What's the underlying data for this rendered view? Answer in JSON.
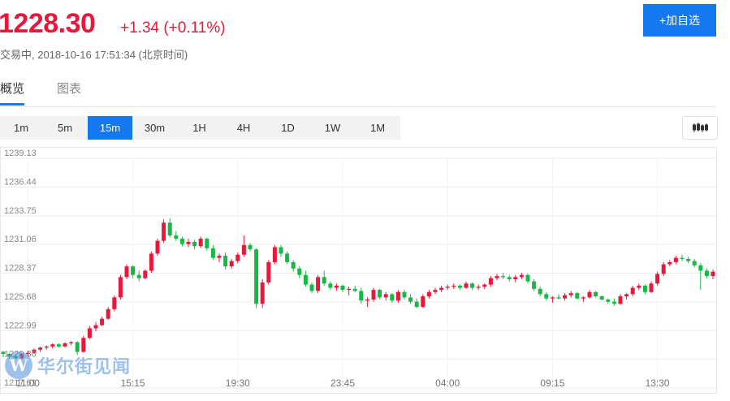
{
  "header": {
    "price": "1228.30",
    "change": "+1.34 (+0.11%)",
    "status": "交易中, 2018-10-16 17:51:34 (北京时间)",
    "add_button": "+加自选"
  },
  "tabs": [
    {
      "label": "概览",
      "active": true
    },
    {
      "label": "图表",
      "active": false
    }
  ],
  "periods": [
    {
      "label": "1m",
      "active": false
    },
    {
      "label": "5m",
      "active": false
    },
    {
      "label": "15m",
      "active": true
    },
    {
      "label": "30m",
      "active": false
    },
    {
      "label": "1H",
      "active": false
    },
    {
      "label": "4H",
      "active": false
    },
    {
      "label": "1D",
      "active": false
    },
    {
      "label": "1W",
      "active": false
    },
    {
      "label": "1M",
      "active": false
    }
  ],
  "chart_type_icon": "candlestick-icon",
  "colors": {
    "up": "#e8183b",
    "down": "#16b945",
    "accent": "#1478f0"
  },
  "watermark": {
    "text": "华尔街见闻",
    "logo_letter": "W"
  },
  "chart_data": {
    "type": "candlestick",
    "y_ticks": [
      "1239.13",
      "1236.44",
      "1233.75",
      "1231.06",
      "1228.37",
      "1225.68",
      "1222.99",
      "1220.30",
      "1217.61"
    ],
    "y_tick_values": [
      1239.13,
      1236.44,
      1233.75,
      1231.06,
      1228.37,
      1225.68,
      1222.99,
      1220.3,
      1217.61
    ],
    "ylim": [
      1217.61,
      1239.13
    ],
    "x_ticks": [
      "11:00",
      "15:15",
      "19:30",
      "23:45",
      "04:00",
      "09:15",
      "13:30"
    ],
    "x_tick_candle_index": [
      4,
      21,
      38,
      55,
      72,
      89,
      106
    ],
    "grid": true,
    "candles": [
      [
        1221.0,
        1221.1,
        1220.5,
        1220.8
      ],
      [
        1220.8,
        1220.9,
        1220.3,
        1220.6
      ],
      [
        1220.6,
        1220.8,
        1220.3,
        1220.4
      ],
      [
        1220.4,
        1220.9,
        1220.3,
        1220.8
      ],
      [
        1220.8,
        1221.1,
        1220.6,
        1220.9
      ],
      [
        1220.9,
        1221.3,
        1220.8,
        1221.2
      ],
      [
        1221.2,
        1221.5,
        1221.0,
        1221.4
      ],
      [
        1221.4,
        1221.6,
        1221.2,
        1221.5
      ],
      [
        1221.5,
        1221.8,
        1221.3,
        1221.7
      ],
      [
        1221.7,
        1221.8,
        1221.4,
        1221.5
      ],
      [
        1221.5,
        1221.9,
        1221.4,
        1221.8
      ],
      [
        1221.8,
        1222.0,
        1221.6,
        1221.9
      ],
      [
        1221.9,
        1222.0,
        1220.7,
        1221.0
      ],
      [
        1221.0,
        1222.5,
        1220.9,
        1222.3
      ],
      [
        1222.3,
        1223.4,
        1222.2,
        1223.2
      ],
      [
        1223.2,
        1223.8,
        1222.9,
        1223.5
      ],
      [
        1223.5,
        1224.3,
        1223.4,
        1224.1
      ],
      [
        1224.1,
        1225.2,
        1224.0,
        1225.0
      ],
      [
        1225.0,
        1226.3,
        1224.8,
        1226.1
      ],
      [
        1226.1,
        1228.2,
        1225.9,
        1228.0
      ],
      [
        1228.0,
        1229.2,
        1227.8,
        1229.0
      ],
      [
        1229.0,
        1229.1,
        1227.9,
        1228.2
      ],
      [
        1228.2,
        1228.6,
        1227.6,
        1227.9
      ],
      [
        1227.9,
        1228.7,
        1227.8,
        1228.6
      ],
      [
        1228.6,
        1230.4,
        1228.4,
        1230.2
      ],
      [
        1230.2,
        1231.6,
        1230.0,
        1231.4
      ],
      [
        1231.4,
        1233.4,
        1231.2,
        1233.1
      ],
      [
        1233.1,
        1233.5,
        1231.7,
        1231.9
      ],
      [
        1231.9,
        1232.3,
        1231.4,
        1231.6
      ],
      [
        1231.6,
        1231.8,
        1230.9,
        1231.1
      ],
      [
        1231.1,
        1231.6,
        1230.8,
        1231.3
      ],
      [
        1231.3,
        1231.5,
        1230.6,
        1230.9
      ],
      [
        1230.9,
        1231.8,
        1230.7,
        1231.6
      ],
      [
        1231.6,
        1231.7,
        1230.5,
        1230.7
      ],
      [
        1230.7,
        1231.0,
        1229.6,
        1229.8
      ],
      [
        1229.8,
        1230.2,
        1229.4,
        1230.0
      ],
      [
        1230.0,
        1230.3,
        1228.7,
        1229.0
      ],
      [
        1229.0,
        1229.7,
        1228.8,
        1229.5
      ],
      [
        1229.5,
        1230.3,
        1229.3,
        1230.1
      ],
      [
        1230.1,
        1231.9,
        1229.9,
        1231.0
      ],
      [
        1231.0,
        1231.2,
        1230.4,
        1230.6
      ],
      [
        1230.6,
        1230.7,
        1225.1,
        1225.5
      ],
      [
        1225.5,
        1227.8,
        1225.1,
        1227.5
      ],
      [
        1227.5,
        1229.6,
        1227.3,
        1229.4
      ],
      [
        1229.4,
        1231.0,
        1229.2,
        1230.8
      ],
      [
        1230.8,
        1231.0,
        1229.9,
        1230.2
      ],
      [
        1230.2,
        1230.4,
        1229.2,
        1229.4
      ],
      [
        1229.4,
        1229.6,
        1228.5,
        1228.8
      ],
      [
        1228.8,
        1229.0,
        1227.9,
        1228.2
      ],
      [
        1228.2,
        1228.6,
        1227.1,
        1227.3
      ],
      [
        1227.3,
        1227.5,
        1226.5,
        1226.7
      ],
      [
        1226.7,
        1228.2,
        1226.5,
        1228.0
      ],
      [
        1228.0,
        1228.6,
        1227.2,
        1227.4
      ],
      [
        1227.4,
        1227.6,
        1226.8,
        1227.0
      ],
      [
        1227.0,
        1227.4,
        1226.7,
        1227.2
      ],
      [
        1227.2,
        1227.3,
        1226.6,
        1226.8
      ],
      [
        1226.8,
        1227.1,
        1226.3,
        1226.9
      ],
      [
        1226.9,
        1227.2,
        1226.6,
        1226.7
      ],
      [
        1226.7,
        1227.0,
        1225.5,
        1225.8
      ],
      [
        1225.8,
        1226.1,
        1225.2,
        1225.9
      ],
      [
        1225.9,
        1227.0,
        1225.7,
        1226.8
      ],
      [
        1226.8,
        1226.9,
        1225.9,
        1226.1
      ],
      [
        1226.1,
        1226.6,
        1225.8,
        1226.4
      ],
      [
        1226.4,
        1226.5,
        1225.6,
        1225.8
      ],
      [
        1225.8,
        1226.8,
        1225.6,
        1226.6
      ],
      [
        1226.6,
        1226.8,
        1225.9,
        1226.1
      ],
      [
        1226.1,
        1226.4,
        1225.5,
        1225.7
      ],
      [
        1225.7,
        1226.0,
        1225.1,
        1225.2
      ],
      [
        1225.2,
        1226.4,
        1225.1,
        1226.2
      ],
      [
        1226.2,
        1226.8,
        1226.0,
        1226.6
      ],
      [
        1226.6,
        1227.0,
        1226.4,
        1226.8
      ],
      [
        1226.8,
        1227.2,
        1226.6,
        1227.0
      ],
      [
        1227.0,
        1227.3,
        1226.8,
        1227.1
      ],
      [
        1227.1,
        1227.4,
        1226.9,
        1227.2
      ],
      [
        1227.2,
        1227.3,
        1226.8,
        1227.0
      ],
      [
        1227.0,
        1227.6,
        1226.9,
        1227.4
      ],
      [
        1227.4,
        1227.5,
        1226.8,
        1227.0
      ],
      [
        1227.0,
        1227.3,
        1226.8,
        1227.1
      ],
      [
        1227.1,
        1227.4,
        1226.9,
        1227.3
      ],
      [
        1227.3,
        1228.1,
        1227.1,
        1227.9
      ],
      [
        1227.9,
        1228.3,
        1227.7,
        1228.1
      ],
      [
        1228.1,
        1228.4,
        1227.8,
        1228.0
      ],
      [
        1228.0,
        1228.2,
        1227.6,
        1227.8
      ],
      [
        1227.8,
        1228.2,
        1227.5,
        1228.0
      ],
      [
        1228.0,
        1228.4,
        1227.8,
        1228.2
      ],
      [
        1228.2,
        1228.3,
        1227.4,
        1227.6
      ],
      [
        1227.6,
        1227.8,
        1226.7,
        1226.9
      ],
      [
        1226.9,
        1227.1,
        1226.2,
        1226.4
      ],
      [
        1226.4,
        1226.6,
        1225.8,
        1226.0
      ],
      [
        1226.0,
        1226.2,
        1225.6,
        1226.1
      ],
      [
        1226.1,
        1226.4,
        1225.9,
        1226.0
      ],
      [
        1226.0,
        1226.5,
        1225.8,
        1226.3
      ],
      [
        1226.3,
        1226.7,
        1226.1,
        1226.5
      ],
      [
        1226.5,
        1226.6,
        1225.9,
        1226.0
      ],
      [
        1226.0,
        1226.2,
        1225.7,
        1226.1
      ],
      [
        1226.1,
        1226.8,
        1226.0,
        1226.6
      ],
      [
        1226.6,
        1226.7,
        1226.1,
        1226.2
      ],
      [
        1226.2,
        1226.3,
        1225.8,
        1225.9
      ],
      [
        1225.9,
        1226.0,
        1225.5,
        1225.7
      ],
      [
        1225.7,
        1226.0,
        1225.3,
        1225.5
      ],
      [
        1225.5,
        1226.4,
        1225.4,
        1226.2
      ],
      [
        1226.2,
        1226.5,
        1225.9,
        1226.4
      ],
      [
        1226.4,
        1227.2,
        1226.2,
        1227.0
      ],
      [
        1227.0,
        1227.4,
        1226.8,
        1227.2
      ],
      [
        1227.2,
        1227.3,
        1226.4,
        1226.6
      ],
      [
        1226.6,
        1227.6,
        1226.5,
        1227.4
      ],
      [
        1227.4,
        1228.5,
        1227.2,
        1228.3
      ],
      [
        1228.3,
        1229.4,
        1228.1,
        1229.2
      ],
      [
        1229.2,
        1229.6,
        1229.0,
        1229.4
      ],
      [
        1229.4,
        1230.0,
        1229.2,
        1229.8
      ],
      [
        1229.8,
        1230.1,
        1229.5,
        1229.7
      ],
      [
        1229.7,
        1229.9,
        1229.3,
        1229.5
      ],
      [
        1229.5,
        1229.7,
        1228.9,
        1229.1
      ],
      [
        1229.1,
        1229.3,
        1226.8,
        1228.6
      ],
      [
        1228.6,
        1228.8,
        1227.9,
        1228.1
      ],
      [
        1228.1,
        1228.7,
        1227.8,
        1228.5
      ]
    ]
  }
}
